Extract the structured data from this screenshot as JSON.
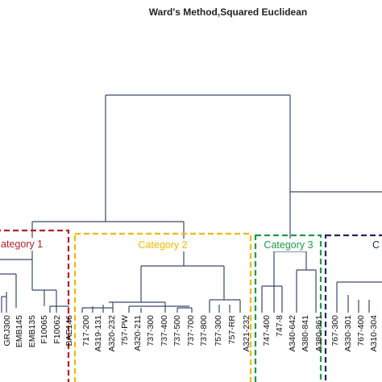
{
  "title": "Ward's Method,Squared Euclidean",
  "categories": [
    {
      "label": "ategory 1",
      "color": "#b0202a"
    },
    {
      "label": "Category 2",
      "color": "#f0b800"
    },
    {
      "label": "Category 3",
      "color": "#1e9a4a"
    },
    {
      "label": "C",
      "color": "#1f2a5a"
    }
  ],
  "leaf_labels": [
    "GRJ300",
    "EMB145",
    "EMB135",
    "F10065",
    "F10062",
    "BAE146",
    "717-200",
    "A319-131",
    "A320-232",
    "757-PW",
    "A320-211",
    "737-300",
    "737-400",
    "737-500",
    "737-700",
    "737-800",
    "757-300",
    "757-RR",
    "A321-232",
    "747-400",
    "747-8",
    "A340-642",
    "A380-841",
    "A380-861",
    "767-300",
    "A330-301",
    "767-400",
    "A310-304"
  ],
  "colors": {
    "tree_line": "#3a4a6b",
    "text": "#111111"
  }
}
